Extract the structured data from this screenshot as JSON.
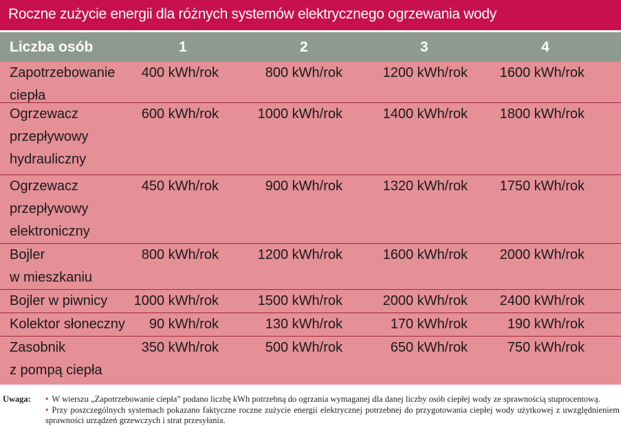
{
  "title": "Roczne zużycie energii dla różnych systemów elektrycznego ogrzewania wody",
  "header": {
    "label": "Liczba osób",
    "cols": [
      "1",
      "2",
      "3",
      "4"
    ]
  },
  "rows": [
    {
      "label": "Zapotrzebowanie\nciepła",
      "values": [
        "400 kWh/rok",
        "800 kWh/rok",
        "1200 kWh/rok",
        "1600 kWh/rok"
      ]
    },
    {
      "label": "Ogrzewacz\nprzepływowy\nhydrauliczny",
      "values": [
        "600 kWh/rok",
        "1000 kWh/rok",
        "1400 kWh/rok",
        "1800 kWh/rok"
      ]
    },
    {
      "label": "Ogrzewacz\nprzepływowy\nelektroniczny",
      "values": [
        "450 kWh/rok",
        "900 kWh/rok",
        "1320 kWh/rok",
        "1750 kWh/rok"
      ]
    },
    {
      "label": "Bojler\nw mieszkaniu",
      "values": [
        "800 kWh/rok",
        "1200 kWh/rok",
        "1600 kWh/rok",
        "2000 kWh/rok"
      ]
    },
    {
      "label": "Bojler w piwnicy",
      "values": [
        "1000 kWh/rok",
        "1500 kWh/rok",
        "2000 kWh/rok",
        "2400 kWh/rok"
      ]
    },
    {
      "label": "Kolektor słoneczny",
      "values": [
        "90 kWh/rok",
        "130 kWh/rok",
        "170 kWh/rok",
        "190 kWh/rok"
      ]
    },
    {
      "label": "Zasobnik\nz pompą ciepła",
      "values": [
        "350 kWh/rok",
        "500 kWh/rok",
        "650 kWh/rok",
        "750 kWh/rok"
      ]
    }
  ],
  "notes": {
    "label": "Uwaga:",
    "items": [
      "W wierszu „Zapotrzebowanie ciepła” podano liczbę kWh potrzebną do ogrzania wymaganej dla danej liczby osób ciepłej wody ze sprawnością stuprocentową.",
      "Przy poszczególnych systemach pokazano faktyczne roczne zużycie energii elektrycznej potrzebnej do przygotowania ciepłej wody użytkowej z uwzględnieniem sprawności urządzeń grzewczych i strat przesyłania."
    ]
  }
}
